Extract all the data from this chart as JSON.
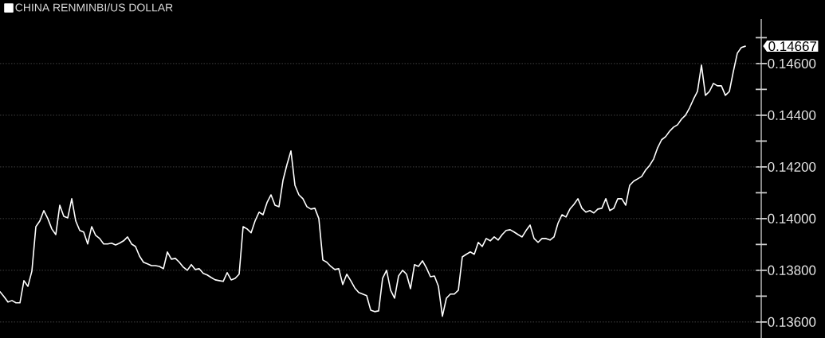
{
  "chart_data": {
    "type": "line",
    "categories": [
      null,
      null,
      null,
      null,
      null,
      null,
      null,
      null,
      null,
      null,
      null,
      null,
      null,
      null,
      null,
      null,
      null,
      null,
      null,
      null,
      null,
      null,
      null,
      null,
      null,
      null,
      null,
      null,
      null,
      null,
      null,
      null,
      null,
      null,
      null,
      null,
      null,
      null,
      null,
      null,
      null,
      null,
      null,
      null,
      null,
      null,
      null,
      null,
      null,
      null,
      null,
      null,
      null,
      null,
      null,
      null,
      null,
      null,
      null,
      null,
      null,
      null,
      null,
      null,
      null,
      null,
      null,
      null,
      null,
      null,
      null,
      null,
      null,
      null,
      null,
      null,
      null,
      null,
      null,
      null,
      null,
      null,
      null,
      null,
      null,
      null,
      null,
      null,
      null,
      null,
      null,
      null,
      null,
      null,
      null,
      null,
      null,
      null,
      null,
      null,
      null,
      null,
      null,
      null,
      null,
      null,
      null,
      null,
      null,
      null,
      null,
      null,
      null,
      null,
      null,
      null,
      null,
      null,
      null,
      null,
      null,
      null,
      null,
      null,
      null,
      null,
      null,
      null,
      null,
      null,
      null,
      null,
      null,
      null,
      null,
      null,
      null,
      null,
      null,
      null,
      null,
      null,
      null,
      null,
      null,
      null,
      null,
      null,
      null,
      null,
      null,
      null,
      null,
      null,
      null,
      null,
      null,
      null,
      null,
      null,
      null,
      null,
      null,
      null,
      null,
      null,
      null,
      null,
      null,
      null,
      null,
      null,
      null,
      null,
      null,
      null,
      null,
      null,
      null,
      null,
      null,
      null,
      null,
      null,
      null,
      null,
      null,
      null
    ],
    "series": [
      {
        "name": "CHINA RENMINBI/US DOLLAR",
        "color": "#ffffff",
        "values": [
          0.13717,
          0.13698,
          0.13677,
          0.13683,
          0.13674,
          0.13674,
          0.1376,
          0.13738,
          0.13797,
          0.13969,
          0.13991,
          0.14031,
          0.14,
          0.1396,
          0.13938,
          0.14052,
          0.14009,
          0.14003,
          0.14077,
          0.13991,
          0.13954,
          0.13948,
          0.13902,
          0.13969,
          0.13935,
          0.13923,
          0.13902,
          0.13902,
          0.13905,
          0.13898,
          0.13905,
          0.13914,
          0.13929,
          0.13902,
          0.13892,
          0.13855,
          0.13831,
          0.13825,
          0.13818,
          0.13818,
          0.13815,
          0.13806,
          0.13871,
          0.13843,
          0.13846,
          0.13831,
          0.13812,
          0.138,
          0.13822,
          0.13803,
          0.13806,
          0.13788,
          0.13782,
          0.13772,
          0.13763,
          0.1376,
          0.13757,
          0.13791,
          0.13763,
          0.13769,
          0.13785,
          0.13969,
          0.1396,
          0.13945,
          0.13991,
          0.14025,
          0.14015,
          0.14062,
          0.14092,
          0.14052,
          0.14046,
          0.14148,
          0.14209,
          0.14262,
          0.14129,
          0.14092,
          0.14077,
          0.14046,
          0.14037,
          0.1404,
          0.14,
          0.1384,
          0.13831,
          0.13815,
          0.13803,
          0.13806,
          0.13745,
          0.13785,
          0.1376,
          0.13732,
          0.13714,
          0.13708,
          0.13702,
          0.13646,
          0.1364,
          0.13643,
          0.13769,
          0.138,
          0.13723,
          0.13692,
          0.13778,
          0.138,
          0.13785,
          0.13729,
          0.13822,
          0.13815,
          0.13837,
          0.13809,
          0.13775,
          0.13778,
          0.13738,
          0.13622,
          0.13692,
          0.13708,
          0.13708,
          0.13723,
          0.13852,
          0.13862,
          0.13871,
          0.13862,
          0.13908,
          0.13892,
          0.13923,
          0.13914,
          0.13929,
          0.13917,
          0.13938,
          0.13954,
          0.13957,
          0.13948,
          0.13938,
          0.13929,
          0.13954,
          0.13975,
          0.13923,
          0.13908,
          0.13923,
          0.13923,
          0.13917,
          0.13929,
          0.13982,
          0.14015,
          0.14006,
          0.14037,
          0.14055,
          0.14077,
          0.1404,
          0.14025,
          0.14031,
          0.14022,
          0.14037,
          0.1404,
          0.14077,
          0.14031,
          0.1404,
          0.14077,
          0.14077,
          0.14052,
          0.14129,
          0.14145,
          0.14154,
          0.14163,
          0.14188,
          0.14206,
          0.14231,
          0.14274,
          0.14305,
          0.14317,
          0.14338,
          0.14354,
          0.14363,
          0.14385,
          0.144,
          0.14428,
          0.14462,
          0.14492,
          0.14594,
          0.14477,
          0.14492,
          0.14523,
          0.14514,
          0.14514,
          0.14477,
          0.14492,
          0.14569,
          0.1464,
          0.14662,
          0.14667
        ],
        "value_labels": [
          null,
          null,
          null,
          null,
          null,
          null,
          null,
          null,
          null,
          null,
          null,
          null,
          null,
          null,
          null,
          null,
          null,
          null,
          null,
          null,
          null,
          null,
          null,
          null,
          null,
          null,
          null,
          null,
          null,
          null,
          null,
          null,
          null,
          null,
          null,
          null,
          null,
          null,
          null,
          null,
          null,
          null,
          null,
          null,
          null,
          null,
          null,
          null,
          null,
          null,
          null,
          null,
          null,
          null,
          null,
          null,
          null,
          null,
          null,
          null,
          null,
          null,
          null,
          null,
          null,
          null,
          null,
          null,
          null,
          null,
          null,
          null,
          null,
          null,
          null,
          null,
          null,
          null,
          null,
          null,
          null,
          null,
          null,
          null,
          null,
          null,
          null,
          null,
          null,
          null,
          null,
          null,
          null,
          null,
          null,
          null,
          null,
          null,
          null,
          null,
          null,
          null,
          null,
          null,
          null,
          null,
          null,
          null,
          null,
          null,
          null,
          null,
          null,
          null,
          null,
          null,
          null,
          null,
          null,
          null,
          null,
          null,
          null,
          null,
          null,
          null,
          null,
          null,
          null,
          null,
          null,
          null,
          null,
          null,
          null,
          null,
          null,
          null,
          null,
          null,
          null,
          null,
          null,
          null,
          null,
          null,
          null,
          null,
          null,
          null,
          null,
          null,
          null,
          null,
          null,
          null,
          null,
          null,
          null,
          null,
          null,
          null,
          null,
          null,
          null,
          null,
          null,
          null,
          null,
          null,
          null,
          null,
          null,
          null,
          null,
          null,
          null,
          null,
          null,
          null,
          null,
          null,
          null,
          null,
          null,
          null,
          null,
          "0.14667"
        ]
      }
    ],
    "ylim": [
      0.13538,
      0.14772
    ],
    "yticks": [
      {
        "value": 0.136,
        "label": "0.13600"
      },
      {
        "value": 0.137,
        "label": null
      },
      {
        "value": 0.138,
        "label": "0.13800"
      },
      {
        "value": 0.139,
        "label": null
      },
      {
        "value": 0.14,
        "label": "0.14000"
      },
      {
        "value": 0.141,
        "label": null
      },
      {
        "value": 0.142,
        "label": "0.14200"
      },
      {
        "value": 0.143,
        "label": null
      },
      {
        "value": 0.144,
        "label": "0.14400"
      },
      {
        "value": 0.145,
        "label": null
      },
      {
        "value": 0.146,
        "label": "0.14600"
      },
      {
        "value": 0.147,
        "label": null
      }
    ],
    "grid": "y",
    "legend": "top left",
    "tick_labels": "y"
  }
}
